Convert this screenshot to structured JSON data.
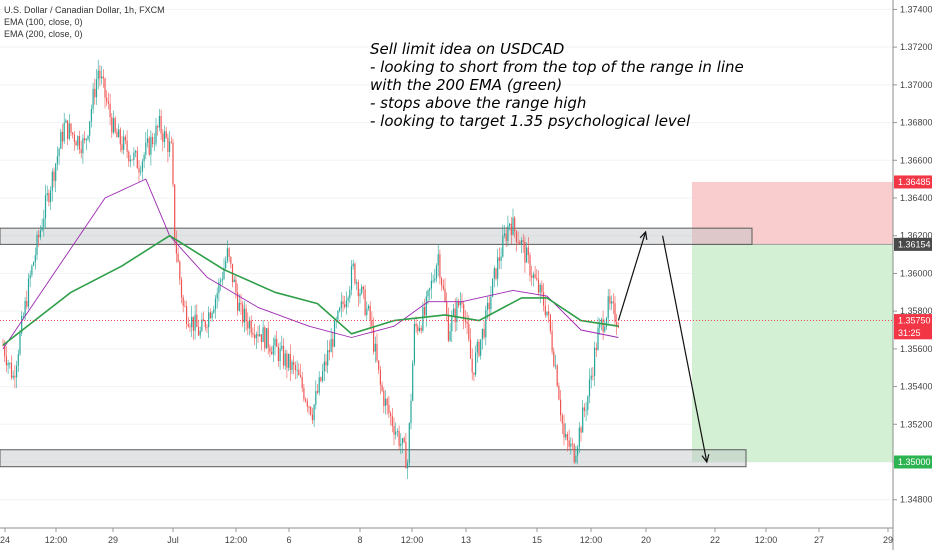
{
  "legend": {
    "symbol": "U.S. Dollar / Canadian Dollar, 1h, FXCM",
    "ema100": "EMA (100, close, 0)",
    "ema200": "EMA (200, close, 0)"
  },
  "note": {
    "lines": [
      "Sell limit idea on USDCAD",
      "- looking to short from the top of the range in line",
      "with the 200 EMA (green)",
      "- stops above the range high",
      "- looking to target 1.35 psychological level"
    ]
  },
  "price_badges": [
    {
      "label": "1.36485",
      "value": 1.36485,
      "color": "#f23645"
    },
    {
      "label": "1.36154",
      "value": 1.36154,
      "color": "#4a4a4a"
    },
    {
      "label": "1.35750",
      "value": 1.3575,
      "color": "#f23645"
    },
    {
      "label": "31:25",
      "value": 1.35685,
      "color": "#f23645"
    },
    {
      "label": "1.35000",
      "value": 1.35,
      "color": "#2eb352"
    }
  ],
  "colors": {
    "up_candle": "#26a69a",
    "down_candle": "#ef5350",
    "ema100": "#9c27b0",
    "ema200": "#2e9e48",
    "stop_zone": "#f8c8c8",
    "target_zone": "#cfeecf"
  },
  "chart_data": {
    "type": "candlestick",
    "y_ticks": [
      "1.37400",
      "1.37200",
      "1.37000",
      "1.36800",
      "1.36600",
      "1.36400",
      "1.36200",
      "1.36000",
      "1.35800",
      "1.35600",
      "1.35400",
      "1.35200",
      "1.35000",
      "1.34800"
    ],
    "ylim": [
      1.3465,
      1.3745
    ],
    "x_ticks": [
      "24",
      "12:00",
      "29",
      "Jul",
      "12:00",
      "6",
      "8",
      "12:00",
      "13",
      "15",
      "12:00",
      "20",
      "22",
      "12:00",
      "27",
      "29"
    ],
    "current_price": 1.3575,
    "ranges": [
      {
        "name": "range-high",
        "low": 1.36154,
        "high": 1.3624
      },
      {
        "name": "range-low",
        "low": 1.34975,
        "high": 1.35065
      }
    ],
    "trade": {
      "entry": 1.36154,
      "stop": 1.36485,
      "target": 1.35
    },
    "anchors": [
      {
        "i": 0,
        "p": 1.3562
      },
      {
        "i": 6,
        "p": 1.3545
      },
      {
        "i": 16,
        "p": 1.3598
      },
      {
        "i": 24,
        "p": 1.3632
      },
      {
        "i": 36,
        "p": 1.3678
      },
      {
        "i": 48,
        "p": 1.3668
      },
      {
        "i": 56,
        "p": 1.3708
      },
      {
        "i": 66,
        "p": 1.3673
      },
      {
        "i": 80,
        "p": 1.3658
      },
      {
        "i": 92,
        "p": 1.3678
      },
      {
        "i": 99,
        "p": 1.3665
      },
      {
        "i": 101,
        "p": 1.362
      },
      {
        "i": 106,
        "p": 1.3582
      },
      {
        "i": 116,
        "p": 1.3568
      },
      {
        "i": 126,
        "p": 1.359
      },
      {
        "i": 132,
        "p": 1.361
      },
      {
        "i": 140,
        "p": 1.3578
      },
      {
        "i": 150,
        "p": 1.357
      },
      {
        "i": 160,
        "p": 1.356
      },
      {
        "i": 172,
        "p": 1.3548
      },
      {
        "i": 182,
        "p": 1.3527
      },
      {
        "i": 194,
        "p": 1.3566
      },
      {
        "i": 206,
        "p": 1.3602
      },
      {
        "i": 216,
        "p": 1.3575
      },
      {
        "i": 222,
        "p": 1.354
      },
      {
        "i": 226,
        "p": 1.3528
      },
      {
        "i": 232,
        "p": 1.3515
      },
      {
        "i": 238,
        "p": 1.35
      },
      {
        "i": 242,
        "p": 1.357
      },
      {
        "i": 248,
        "p": 1.3578
      },
      {
        "i": 256,
        "p": 1.361
      },
      {
        "i": 262,
        "p": 1.357
      },
      {
        "i": 270,
        "p": 1.3588
      },
      {
        "i": 276,
        "p": 1.3548
      },
      {
        "i": 284,
        "p": 1.3575
      },
      {
        "i": 290,
        "p": 1.3602
      },
      {
        "i": 298,
        "p": 1.3628
      },
      {
        "i": 304,
        "p": 1.3618
      },
      {
        "i": 312,
        "p": 1.3598
      },
      {
        "i": 320,
        "p": 1.358
      },
      {
        "i": 326,
        "p": 1.3545
      },
      {
        "i": 330,
        "p": 1.3512
      },
      {
        "i": 336,
        "p": 1.3505
      },
      {
        "i": 344,
        "p": 1.3535
      },
      {
        "i": 350,
        "p": 1.3568
      },
      {
        "i": 356,
        "p": 1.3582
      },
      {
        "i": 362,
        "p": 1.3576
      }
    ],
    "ema100_points": [
      [
        0,
        1.356
      ],
      [
        30,
        1.36
      ],
      [
        60,
        1.364
      ],
      [
        84,
        1.365
      ],
      [
        98,
        1.362
      ],
      [
        120,
        1.3598
      ],
      [
        150,
        1.3582
      ],
      [
        180,
        1.3572
      ],
      [
        205,
        1.3566
      ],
      [
        230,
        1.3572
      ],
      [
        250,
        1.3585
      ],
      [
        270,
        1.3585
      ],
      [
        300,
        1.3591
      ],
      [
        320,
        1.3588
      ],
      [
        340,
        1.357
      ],
      [
        362,
        1.3566
      ]
    ],
    "ema200_points": [
      [
        0,
        1.3562
      ],
      [
        40,
        1.359
      ],
      [
        70,
        1.3604
      ],
      [
        98,
        1.362
      ],
      [
        130,
        1.3602
      ],
      [
        160,
        1.359
      ],
      [
        185,
        1.3584
      ],
      [
        205,
        1.3568
      ],
      [
        230,
        1.3575
      ],
      [
        260,
        1.3578
      ],
      [
        280,
        1.3575
      ],
      [
        305,
        1.3587
      ],
      [
        320,
        1.3587
      ],
      [
        340,
        1.3575
      ],
      [
        362,
        1.3572
      ]
    ],
    "projection": [
      [
        362,
        1.3575
      ],
      [
        378,
        1.3622
      ],
      [
        388,
        1.362
      ],
      [
        414,
        1.35
      ]
    ]
  }
}
